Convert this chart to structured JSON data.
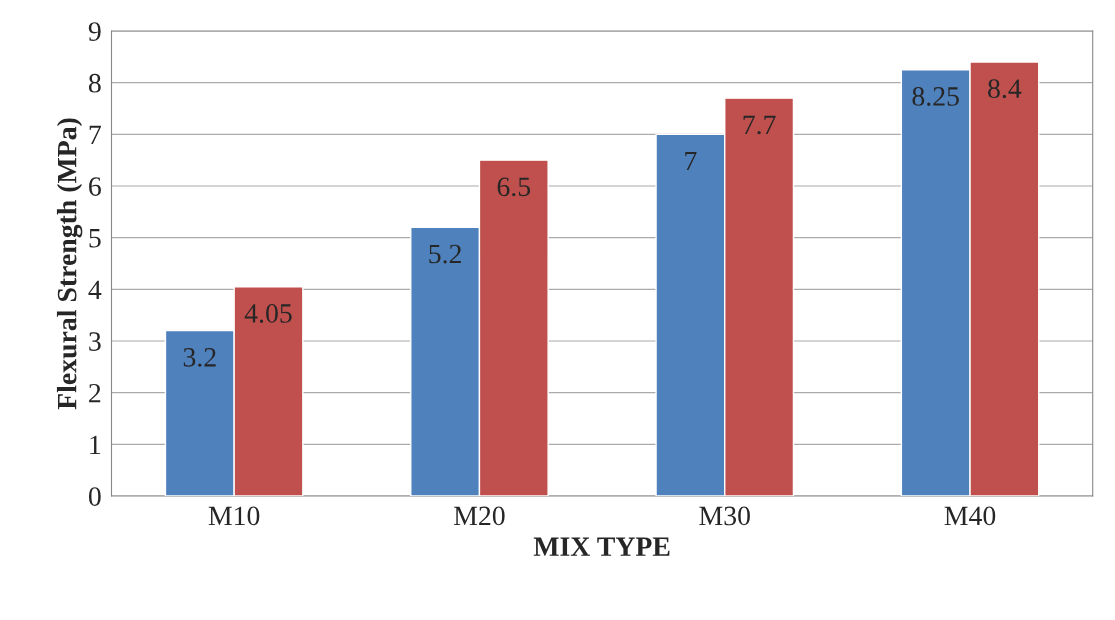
{
  "chart_data": {
    "type": "bar",
    "xlabel": "MIX TYPE",
    "ylabel": "Flexural Strength (MPa)",
    "categories": [
      "M10",
      "M20",
      "M30",
      "M40"
    ],
    "series": [
      {
        "color": "#4f81bd",
        "values": [
          3.2,
          5.2,
          7,
          8.25
        ]
      },
      {
        "color": "#c0504d",
        "values": [
          4.05,
          6.5,
          7.7,
          8.4
        ]
      }
    ],
    "ylim": [
      0,
      9
    ],
    "yticks": [
      0,
      1,
      2,
      3,
      4,
      5,
      6,
      7,
      8,
      9
    ],
    "grid": "y",
    "data_labels": true
  }
}
